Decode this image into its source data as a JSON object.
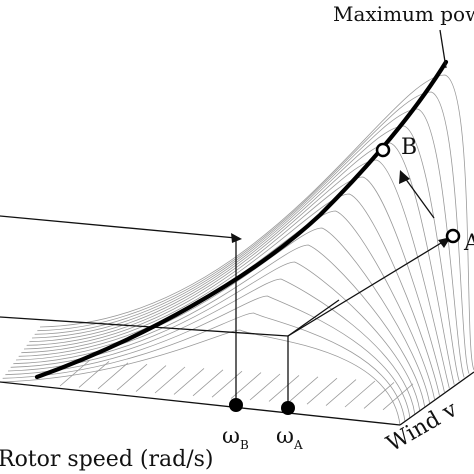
{
  "title_label": "Maximum pow",
  "points": {
    "B": "B",
    "A": "A"
  },
  "axes": {
    "x_label": "Rotor speed (rad/s)",
    "z_label": "Wind v"
  },
  "markers": {
    "omega_b_main": "ω",
    "omega_b_sub": "B",
    "omega_a_main": "ω",
    "omega_a_sub": "A"
  },
  "colors": {
    "ink": "#000000",
    "surface_lines": "#9a9a9a",
    "background": "#ffffff"
  }
}
